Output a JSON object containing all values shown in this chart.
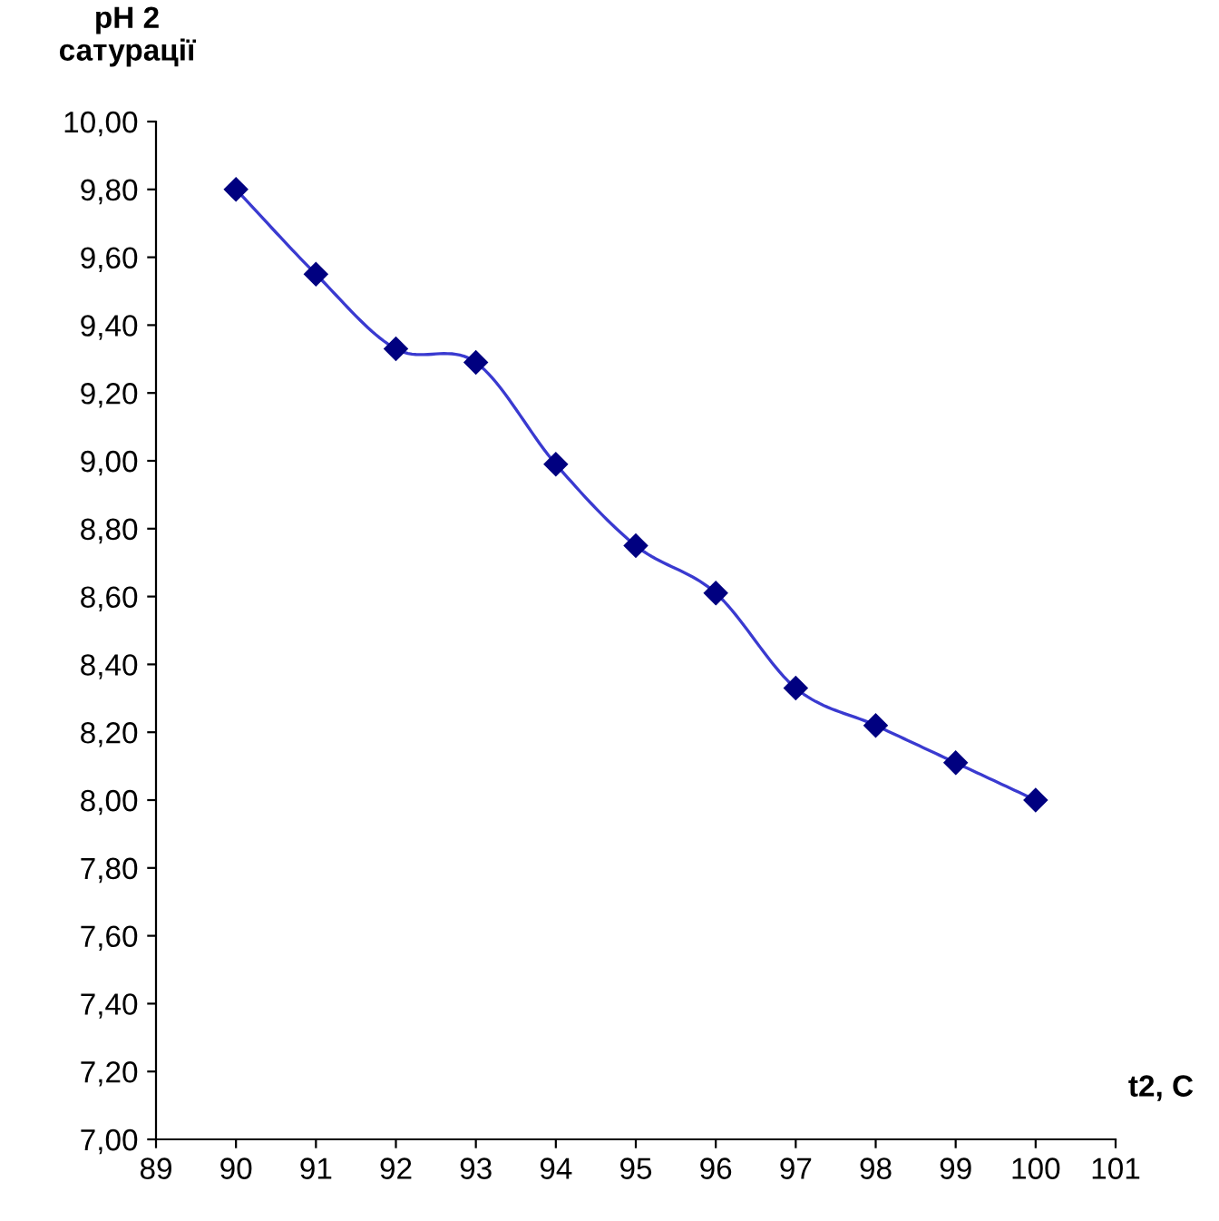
{
  "chart_data": {
    "type": "line",
    "ylabel": "pH 2\nсатурації",
    "xlabel": "t2, C",
    "x": [
      90,
      91,
      92,
      93,
      94,
      95,
      96,
      97,
      98,
      99,
      100
    ],
    "series": [
      {
        "color": "#000080",
        "values": [
          9.8,
          9.55,
          9.33,
          9.29,
          8.99,
          8.75,
          8.61,
          8.33,
          8.22,
          8.11,
          8.0
        ]
      }
    ],
    "xlim": [
      89,
      101
    ],
    "xticks": [
      89,
      90,
      91,
      92,
      93,
      94,
      95,
      96,
      97,
      98,
      99,
      100,
      101
    ],
    "ylim": [
      7,
      10
    ],
    "yticks": [
      {
        "value": 7.0,
        "label": "7,00"
      },
      {
        "value": 7.2,
        "label": "7,20"
      },
      {
        "value": 7.4,
        "label": "7,40"
      },
      {
        "value": 7.6,
        "label": "7,60"
      },
      {
        "value": 7.8,
        "label": "7,80"
      },
      {
        "value": 8.0,
        "label": "8,00"
      },
      {
        "value": 8.2,
        "label": "8,20"
      },
      {
        "value": 8.4,
        "label": "8,40"
      },
      {
        "value": 8.6,
        "label": "8,60"
      },
      {
        "value": 8.8,
        "label": "8,80"
      },
      {
        "value": 9.0,
        "label": "9,00"
      },
      {
        "value": 9.2,
        "label": "9,20"
      },
      {
        "value": 9.4,
        "label": "9,40"
      },
      {
        "value": 9.6,
        "label": "9,60"
      },
      {
        "value": 9.8,
        "label": "9,80"
      },
      {
        "value": 10.0,
        "label": "10,00"
      }
    ],
    "grid": false,
    "marker": "diamond",
    "line_style": "solid"
  }
}
